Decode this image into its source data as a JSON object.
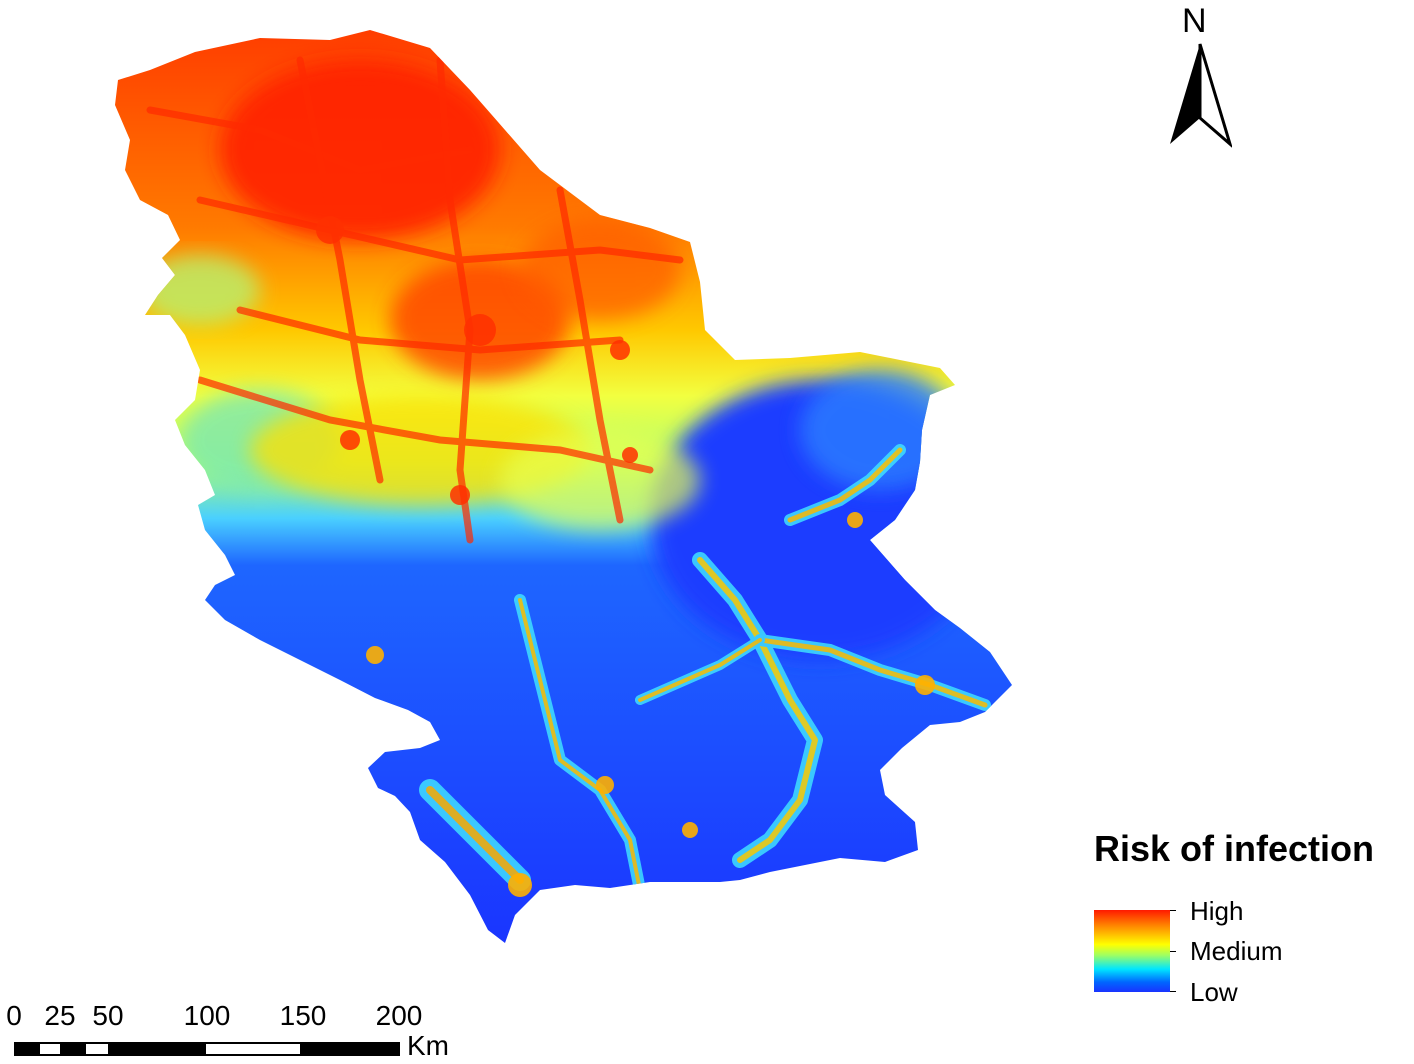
{
  "north": {
    "label": "N"
  },
  "legend": {
    "title": "Risk of infection",
    "labels": {
      "high": "High",
      "medium": "Medium",
      "low": "Low"
    },
    "colors": {
      "high": "#ff1a00",
      "medium": "#ffff00",
      "low": "#1a33ff"
    }
  },
  "scale": {
    "ticks": [
      "0",
      "25",
      "50",
      "100",
      "150",
      "200"
    ],
    "unit": "Km"
  },
  "map": {
    "risk_colors": [
      "#1a33ff",
      "#0a4bff",
      "#00c8ff",
      "#9fff7a",
      "#ffff00",
      "#ffb000",
      "#ff6000",
      "#ff2a00"
    ]
  }
}
